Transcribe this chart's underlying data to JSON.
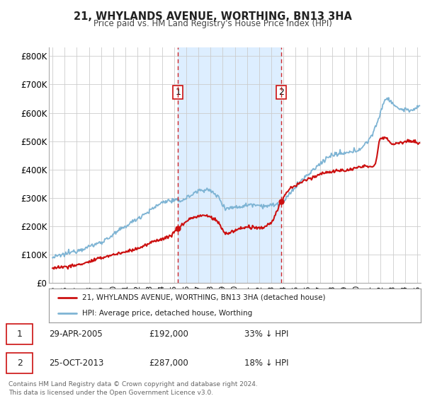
{
  "title": "21, WHYLANDS AVENUE, WORTHING, BN13 3HA",
  "subtitle": "Price paid vs. HM Land Registry's House Price Index (HPI)",
  "ylabel_ticks": [
    "£0",
    "£100K",
    "£200K",
    "£300K",
    "£400K",
    "£500K",
    "£600K",
    "£700K",
    "£800K"
  ],
  "ytick_values": [
    0,
    100000,
    200000,
    300000,
    400000,
    500000,
    600000,
    700000,
    800000
  ],
  "ylim": [
    0,
    830000
  ],
  "xlim_start": 1994.7,
  "xlim_end": 2025.3,
  "hpi_color": "#7eb4d4",
  "price_color": "#cc1111",
  "vline_color": "#cc1111",
  "shade_color": "#ddeeff",
  "purchase1_year": 2005.32,
  "purchase1_price": 192000,
  "purchase2_year": 2013.81,
  "purchase2_price": 287000,
  "purchase1_label": "1",
  "purchase2_label": "2",
  "legend_label1": "21, WHYLANDS AVENUE, WORTHING, BN13 3HA (detached house)",
  "legend_label2": "HPI: Average price, detached house, Worthing",
  "table_row1": [
    "1",
    "29-APR-2005",
    "£192,000",
    "33% ↓ HPI"
  ],
  "table_row2": [
    "2",
    "25-OCT-2013",
    "£287,000",
    "18% ↓ HPI"
  ],
  "footer": "Contains HM Land Registry data © Crown copyright and database right 2024.\nThis data is licensed under the Open Government Licence v3.0.",
  "background_color": "#ffffff",
  "grid_color": "#cccccc"
}
